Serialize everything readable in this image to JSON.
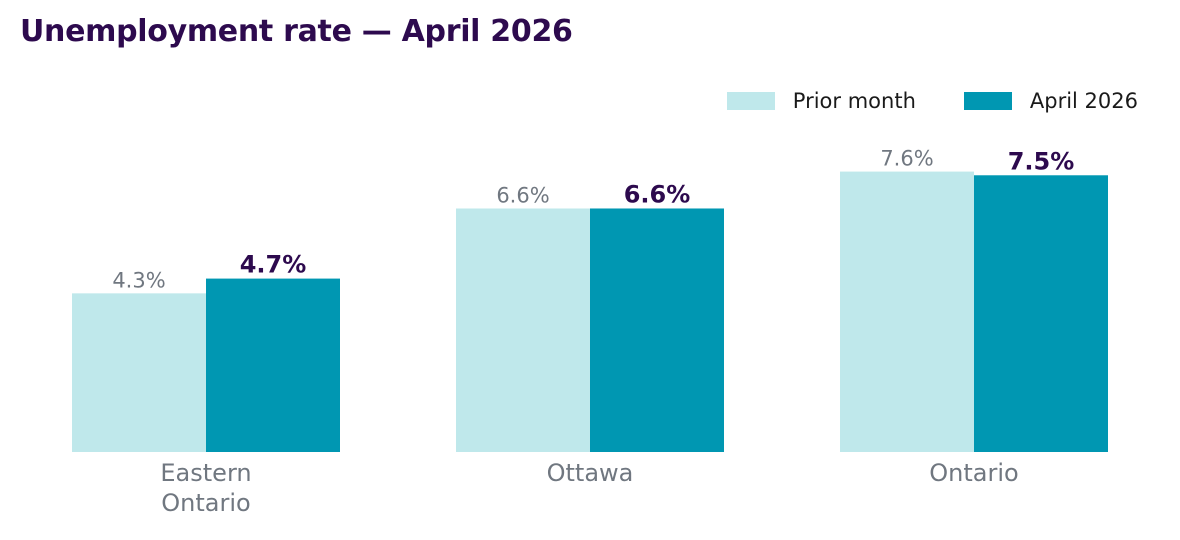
{
  "chart_data": {
    "type": "bar",
    "title": "Unemployment rate — April 2026",
    "categories": [
      "Eastern Ontario",
      "Ottawa",
      "Ontario"
    ],
    "category_lines": [
      [
        "Eastern",
        "Ontario"
      ],
      [
        "Ottawa"
      ],
      [
        "Ontario"
      ]
    ],
    "series": [
      {
        "name": "Prior month",
        "values": [
          4.3,
          6.6,
          7.6
        ],
        "labels": [
          "4.3%",
          "6.6%",
          "7.6%"
        ],
        "color": "#bfe8eb"
      },
      {
        "name": "April 2026",
        "values": [
          4.7,
          6.6,
          7.5
        ],
        "labels": [
          "4.7%",
          "6.6%",
          "7.5%"
        ],
        "color": "#0097b2"
      }
    ],
    "ylim": [
      0,
      8.7
    ],
    "grid": false,
    "legend_position": "top-right"
  },
  "colors": {
    "title": "#2d0a4e",
    "prior_month": "#bfe8eb",
    "current": "#0097b2",
    "value_label_prior": "#707780",
    "value_label_current": "#2d0a4e",
    "category_label": "#707780"
  }
}
